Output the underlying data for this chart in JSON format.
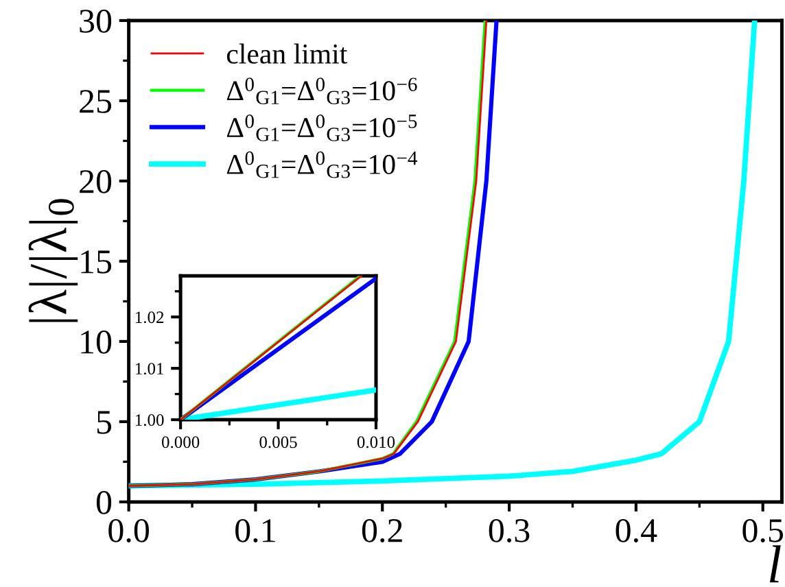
{
  "chart_data": [
    {
      "type": "line",
      "xlabel": "l",
      "ylabel": "|λ|/|λ|$_{0}$",
      "xlim": [
        0,
        0.515
      ],
      "ylim": [
        0,
        30
      ],
      "xticks": [
        {
          "value": 0,
          "label": "0.0"
        },
        0.1,
        0.2,
        0.3,
        0.4,
        0.5
      ],
      "yticks": [
        0,
        5,
        10,
        15,
        20,
        25,
        30
      ],
      "legend": "top left",
      "grid": false,
      "series": [
        {
          "name": "clean limit",
          "color": "#ff0000",
          "x": [
            0,
            0.05,
            0.1,
            0.15,
            0.2,
            0.209,
            0.228,
            0.258,
            0.274,
            0.282
          ],
          "values": [
            1,
            1.1,
            1.4,
            1.9,
            2.7,
            3,
            5,
            10,
            20,
            30
          ]
        },
        {
          "name": "Δ$^{0}$$_{G1}$=Δ$^{0}$$_{G3}$=10$^{−6}$",
          "color": "#00ff00",
          "x": [
            0,
            0.05,
            0.1,
            0.15,
            0.2,
            0.2085,
            0.227,
            0.257,
            0.273,
            0.281
          ],
          "values": [
            1,
            1.1,
            1.4,
            1.9,
            2.7,
            3,
            5,
            10,
            20,
            30
          ]
        },
        {
          "name": "Δ$^{0}$$_{G1}$=Δ$^{0}$$_{G3}$=10$^{−5}$",
          "color": "#0000ff",
          "x": [
            0,
            0.05,
            0.1,
            0.15,
            0.2,
            0.214,
            0.239,
            0.268,
            0.282,
            0.29
          ],
          "values": [
            1,
            1.1,
            1.4,
            1.9,
            2.5,
            3,
            5,
            10,
            20,
            30
          ]
        },
        {
          "name": "Δ$^{0}$$_{G1}$=Δ$^{0}$$_{G3}$=10$^{−4}$",
          "color": "#00ffff",
          "x": [
            0,
            0.1,
            0.2,
            0.3,
            0.35,
            0.4,
            0.42,
            0.45,
            0.473,
            0.485,
            0.4935
          ],
          "values": [
            1,
            1.1,
            1.3,
            1.6,
            1.9,
            2.6,
            3,
            5,
            10,
            20,
            30
          ]
        }
      ]
    },
    {
      "type": "line",
      "xlim": [
        0,
        0.01
      ],
      "ylim": [
        1.0,
        1.028
      ],
      "xticks": [
        {
          "value": 0,
          "label": "0.000"
        },
        {
          "value": 0.005,
          "label": "0.005"
        },
        {
          "value": 0.01,
          "label": "0.010"
        }
      ],
      "yticks": [
        {
          "value": 1.0,
          "label": "1.00"
        },
        {
          "value": 1.01,
          "label": "1.01"
        },
        {
          "value": 1.02,
          "label": "1.02"
        }
      ],
      "grid": false,
      "series": [
        {
          "color": "#ff0000",
          "x": [
            0,
            0.00925
          ],
          "values": [
            1.0,
            1.028
          ]
        },
        {
          "color": "#00ff00",
          "x": [
            0,
            0.0092
          ],
          "values": [
            1.0,
            1.028
          ]
        },
        {
          "color": "#0000ff",
          "x": [
            0,
            0.01
          ],
          "values": [
            1.0,
            1.0275
          ]
        },
        {
          "color": "#00ffff",
          "x": [
            0,
            0.01
          ],
          "values": [
            1.0,
            1.0058
          ]
        }
      ]
    }
  ]
}
